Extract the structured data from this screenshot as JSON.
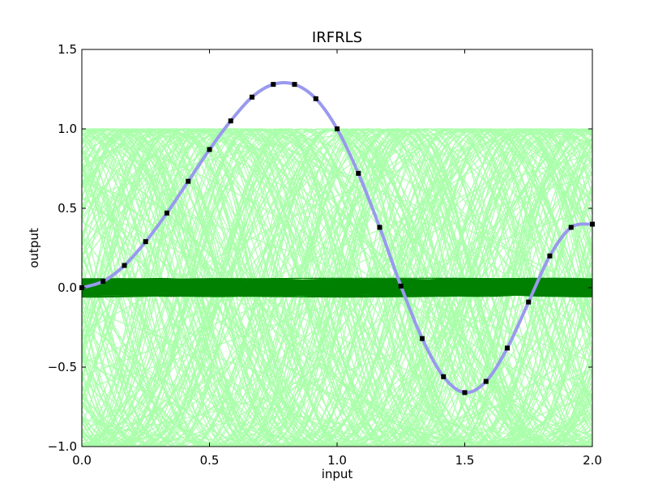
{
  "chart_data": {
    "type": "line",
    "title": "IRFRLS",
    "xlabel": "input",
    "ylabel": "output",
    "xlim": [
      0.0,
      2.0
    ],
    "ylim": [
      -1.0,
      1.5
    ],
    "x_ticks": [
      "0.0",
      "0.5",
      "1.0",
      "1.5",
      "2.0"
    ],
    "y_ticks": [
      "−1.0",
      "−0.5",
      "0.0",
      "0.5",
      "1.0",
      "1.5"
    ],
    "grid": false,
    "legend": "none",
    "colors": {
      "target_curve": "#9999ee",
      "samples": "#000000",
      "random_features": "#aaffaa",
      "weighted_features": "#008000"
    },
    "series": [
      {
        "role": "target-curve",
        "x": [
          0.0,
          0.0833,
          0.1667,
          0.25,
          0.3333,
          0.4167,
          0.5,
          0.5833,
          0.6667,
          0.75,
          0.8333,
          0.9167,
          1.0,
          1.0833,
          1.1667,
          1.25,
          1.3333,
          1.4167,
          1.5,
          1.5833,
          1.6667,
          1.75,
          1.8333,
          1.9167,
          2.0
        ],
        "y": [
          0.0,
          0.04,
          0.14,
          0.29,
          0.47,
          0.67,
          0.87,
          1.05,
          1.2,
          1.28,
          1.28,
          1.19,
          1.0,
          0.72,
          0.38,
          0.01,
          -0.32,
          -0.56,
          -0.66,
          -0.59,
          -0.38,
          -0.09,
          0.2,
          0.38,
          0.4
        ]
      },
      {
        "role": "samples",
        "x": [
          0.0,
          0.0833,
          0.1667,
          0.25,
          0.3333,
          0.4167,
          0.5,
          0.5833,
          0.6667,
          0.75,
          0.8333,
          0.9167,
          1.0,
          1.0833,
          1.1667,
          1.25,
          1.3333,
          1.4167,
          1.5,
          1.5833,
          1.6667,
          1.75,
          1.8333,
          1.9167,
          2.0
        ],
        "y": [
          0.0,
          0.04,
          0.14,
          0.29,
          0.47,
          0.67,
          0.87,
          1.05,
          1.2,
          1.28,
          1.28,
          1.19,
          1.0,
          0.72,
          0.38,
          0.01,
          -0.32,
          -0.56,
          -0.66,
          -0.59,
          -0.38,
          -0.09,
          0.2,
          0.38,
          0.4
        ]
      }
    ],
    "random_features": {
      "count": 200,
      "amplitude": 1.0,
      "frequency_range": [
        0.5,
        8.0
      ]
    },
    "weighted_features": {
      "count": 200,
      "amplitude_range": [
        0.0,
        0.06
      ]
    }
  }
}
